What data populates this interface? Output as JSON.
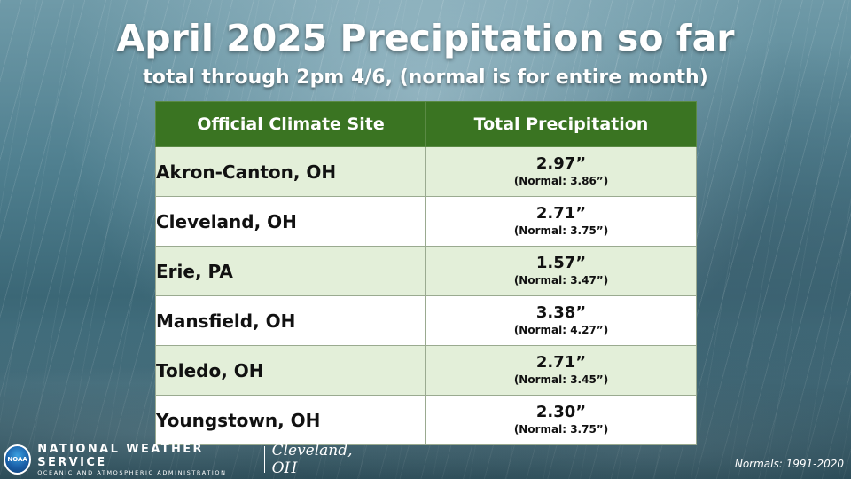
{
  "title": "April 2025 Precipitation so far",
  "subtitle": "total through 2pm 4/6, (normal is for entire month)",
  "table": {
    "headers": [
      "Official Climate Site",
      "Total Precipitation"
    ],
    "rows": [
      {
        "site": "Akron-Canton, OH",
        "total": "2.97”",
        "normal": "(Normal: 3.86”)"
      },
      {
        "site": "Cleveland, OH",
        "total": "2.71”",
        "normal": "(Normal: 3.75”)"
      },
      {
        "site": "Erie, PA",
        "total": "1.57”",
        "normal": "(Normal: 3.47”)"
      },
      {
        "site": "Mansfield, OH",
        "total": "3.38”",
        "normal": "(Normal:  4.27”)"
      },
      {
        "site": "Toledo, OH",
        "total": "2.71”",
        "normal": "(Normal:  3.45”)"
      },
      {
        "site": "Youngstown, OH",
        "total": "2.30”",
        "normal": "(Normal: 3.75”)"
      }
    ]
  },
  "footer": {
    "logo_text": "NOAA",
    "agency": "NATIONAL WEATHER SERVICE",
    "agency_sub": "OCEANIC AND ATMOSPHERIC ADMINISTRATION",
    "office": "Cleveland, OH",
    "normals_note": "Normals: 1991-2020"
  },
  "colors": {
    "header_green": "#3a7422",
    "row_shade": "#e3efd9",
    "row_plain": "#ffffff"
  }
}
